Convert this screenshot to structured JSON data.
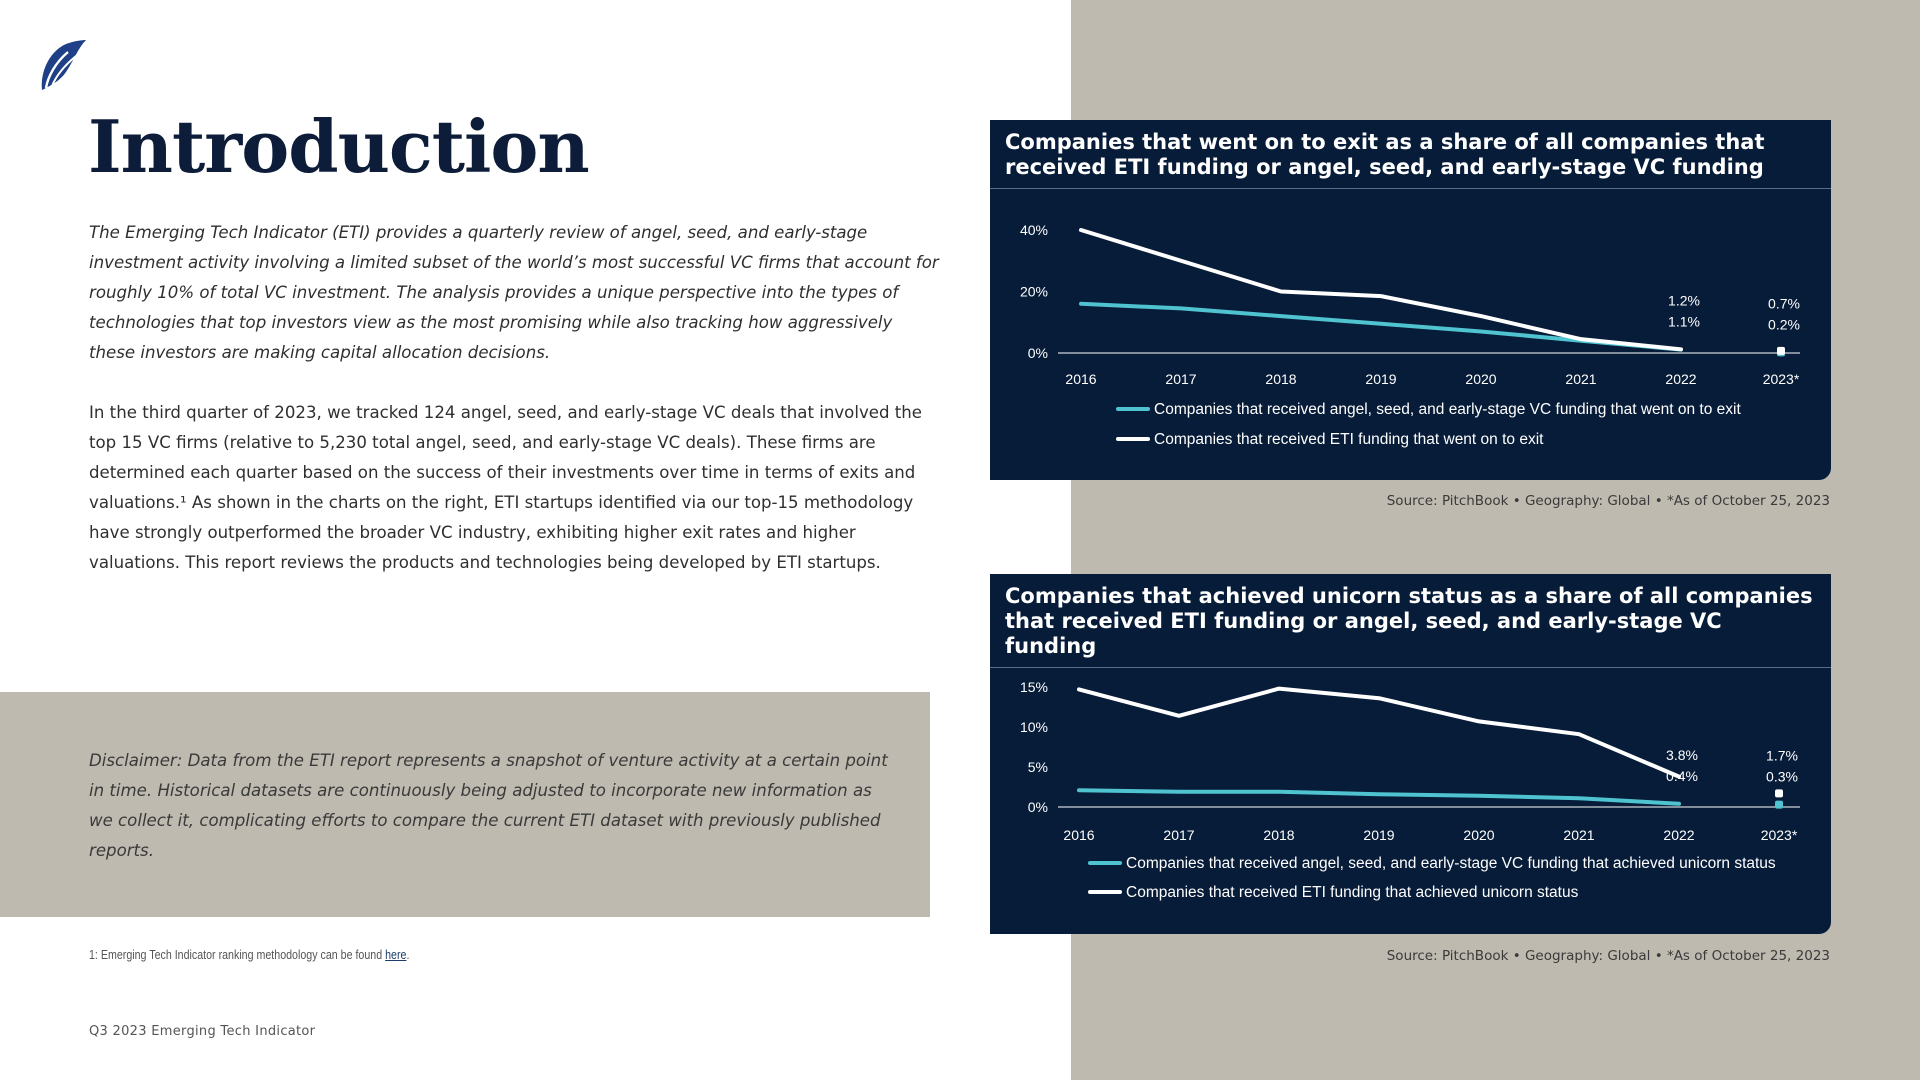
{
  "page": {
    "title": "Introduction",
    "intro_italic": "The Emerging Tech Indicator (ETI) provides a quarterly review of angel, seed, and early-stage investment activity involving a limited subset of the world’s most successful VC firms that account for roughly 10% of total VC investment. The analysis provides a unique perspective into the types of technologies that top investors view as the most promising while also tracking how aggressively these investors are making capital allocation decisions.",
    "intro_body": "In the third quarter of 2023, we tracked 124 angel, seed, and early-stage VC deals that involved the top 15 VC firms (relative to 5,230 total angel, seed, and early-stage VC deals). These firms are determined each quarter based on the success of their investments over time in terms of exits and valuations.¹ As shown in the charts on the right, ETI startups identified via our top-15 methodology have strongly outperformed the broader VC industry, exhibiting higher exit rates and higher valuations. This report reviews the products and technologies being developed by ETI startups.",
    "disclaimer": "Disclaimer: Data from the ETI report represents a snapshot of venture activity at a certain point in time. Historical datasets are continuously being adjusted to incorporate new information as we collect it, complicating efforts to compare the current ETI dataset with previously published reports.",
    "footnote_text": "1: Emerging Tech Indicator ranking methodology can be found ",
    "footnote_link": "here",
    "footnote_end": ".",
    "footer": "Q3 2023 Emerging Tech Indicator",
    "logo_icon": "sail-logo-icon"
  },
  "colors": {
    "navy": "#071c38",
    "teal": "#4fc3cf",
    "white": "#ffffff",
    "beige": "#bfbab0"
  },
  "chart_data": [
    {
      "type": "line",
      "title": "Companies that went on to exit as a share of all companies that received ETI funding or angel, seed, and early-stage VC funding",
      "categories": [
        "2016",
        "2017",
        "2018",
        "2019",
        "2020",
        "2021",
        "2022",
        "2023*"
      ],
      "y_ticks": [
        "40%",
        "20%",
        "0%"
      ],
      "ylim": [
        0,
        40
      ],
      "series": [
        {
          "name": "Companies that received angel, seed, and early-stage VC funding that went on to exit",
          "color": "#4fc3cf",
          "values": [
            16,
            14.5,
            12,
            9.5,
            7,
            4,
            1.1,
            0.2
          ]
        },
        {
          "name": "Companies that received ETI funding that went on to exit",
          "color": "#ffffff",
          "values": [
            40,
            30,
            20,
            18.5,
            12,
            4.5,
            1.2,
            0.7
          ]
        }
      ],
      "annotations": {
        "2022": [
          "1.2%",
          "1.1%"
        ],
        "2023*": [
          "0.7%",
          "0.2%"
        ]
      },
      "source": "Source: PitchBook  •  Geography: Global  •  *As of October 25, 2023"
    },
    {
      "type": "line",
      "title": "Companies that achieved unicorn status as a share of all companies that received ETI funding or angel, seed, and early-stage VC funding",
      "categories": [
        "2016",
        "2017",
        "2018",
        "2019",
        "2020",
        "2021",
        "2022",
        "2023*"
      ],
      "y_ticks": [
        "15%",
        "10%",
        "5%",
        "0%"
      ],
      "ylim": [
        0,
        15
      ],
      "series": [
        {
          "name": "Companies that received angel, seed, and early-stage VC funding that achieved unicorn status",
          "color": "#4fc3cf",
          "values": [
            2.1,
            1.9,
            1.9,
            1.6,
            1.4,
            1.1,
            0.4,
            0.3
          ]
        },
        {
          "name": "Companies that received ETI funding that achieved unicorn status",
          "color": "#ffffff",
          "values": [
            14.7,
            11.4,
            14.8,
            13.6,
            10.7,
            9.1,
            3.8,
            1.7
          ]
        }
      ],
      "annotations": {
        "2022": [
          "3.8%",
          "0.4%"
        ],
        "2023*": [
          "1.7%",
          "0.3%"
        ]
      },
      "source": "Source: PitchBook  •  Geography: Global  •  *As of October 25, 2023"
    }
  ]
}
